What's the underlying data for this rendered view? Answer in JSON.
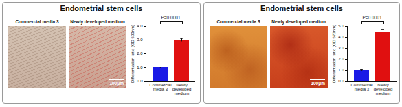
{
  "panels": [
    {
      "title": "Endometrial stem cells",
      "images": [
        "Commercial media 3",
        "Newly developed medium"
      ],
      "scale_bar": "100μm"
    },
    {
      "title": "Endometrial stem cells",
      "images": [
        "Commercial media 3",
        "Newly developed medium"
      ],
      "scale_bar": "100μm"
    }
  ],
  "chart_data": [
    {
      "type": "bar",
      "categories": [
        "Commercial media 3",
        "Newly developed medium"
      ],
      "values": [
        1,
        3
      ],
      "errors": [
        0.04,
        0.12
      ],
      "colors": [
        "#1a1ae6",
        "#e01010"
      ],
      "y_label": "Differentiation ratio (OD 500nm)",
      "ylim": [
        0,
        4
      ],
      "yticks": [
        0,
        1,
        2,
        3,
        4
      ],
      "annotations": [
        "P=0.0001"
      ]
    },
    {
      "type": "bar",
      "categories": [
        "Commercial media 3",
        "Newly developed medium"
      ],
      "values": [
        1,
        4.5
      ],
      "errors": [
        0.05,
        0.2
      ],
      "colors": [
        "#1a1ae6",
        "#e01010"
      ],
      "y_label": "Differentiation ratio (OD 570nm)",
      "ylim": [
        0,
        5
      ],
      "yticks": [
        0,
        1,
        2,
        3,
        4,
        5
      ],
      "annotations": [
        "P=0.0001"
      ]
    }
  ]
}
